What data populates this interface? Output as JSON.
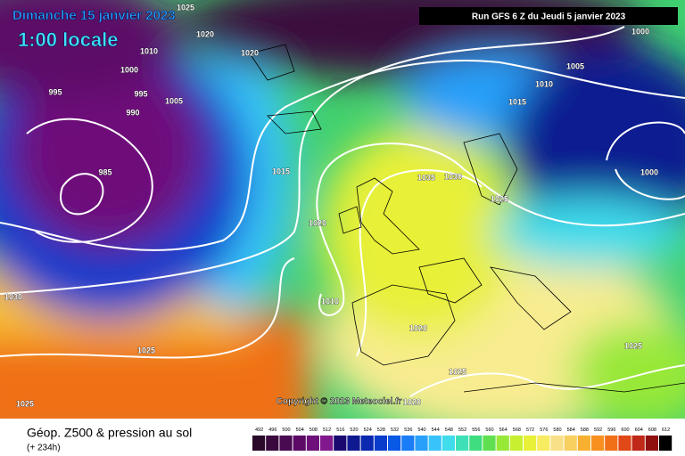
{
  "header": {
    "date": "Dimanche 15 janvier 2023",
    "time": "1:00 locale",
    "run": "Run GFS 6 Z du Jeudi 5 janvier 2023"
  },
  "isobars": [
    1025,
    1020,
    1010,
    1020,
    1000,
    995,
    995,
    1005,
    990,
    985,
    1015,
    1035,
    1030,
    1025,
    1020,
    1010,
    1030,
    1020,
    1025,
    1025,
    1020,
    1025,
    1000,
    1005,
    1010,
    1015,
    1000,
    1025
  ],
  "copyright": "Copyright © 2023 Meteociel.fr",
  "legend": {
    "title": "Géop. Z500 & pression au sol",
    "subtitle": "(+ 234h)",
    "values": [
      492,
      496,
      500,
      504,
      508,
      512,
      516,
      520,
      524,
      528,
      532,
      536,
      540,
      544,
      548,
      552,
      556,
      560,
      564,
      568,
      572,
      576,
      580,
      584,
      588,
      592,
      596,
      600,
      604,
      608,
      612
    ],
    "colors": [
      "#2a0a2a",
      "#3a0a3e",
      "#4a0a52",
      "#5c0a66",
      "#6e107a",
      "#82188e",
      "#1a0a70",
      "#101a90",
      "#0a28b0",
      "#0a3ccc",
      "#0a58e6",
      "#1a7cf6",
      "#28a0fa",
      "#38c4fa",
      "#40dcec",
      "#3ee0b8",
      "#40dc80",
      "#60e050",
      "#98e838",
      "#c8f030",
      "#e8f038",
      "#f8ec60",
      "#f8e088",
      "#f8d060",
      "#f8b030",
      "#f89020",
      "#f07018",
      "#e04818",
      "#c02818",
      "#901010",
      "#000000"
    ]
  }
}
